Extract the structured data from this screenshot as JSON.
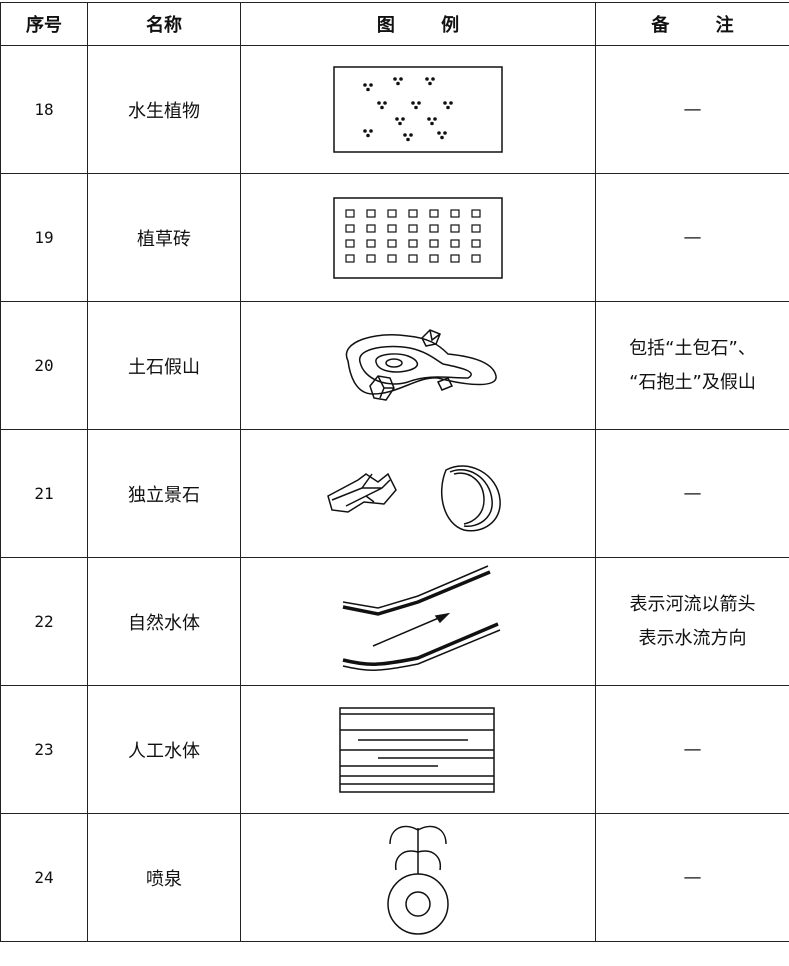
{
  "header": [
    "序号",
    "名称",
    "图 例",
    "备 注"
  ],
  "rows": [
    {
      "no": 18,
      "name": "水生植物",
      "remark": [
        "—"
      ]
    },
    {
      "no": 19,
      "name": "植草砖",
      "remark": [
        "—"
      ]
    },
    {
      "no": 20,
      "name": "土石假山",
      "remark": [
        "包括“土包石”、",
        "“石抱土”及假山"
      ]
    },
    {
      "no": 21,
      "name": "独立景石",
      "remark": [
        "—"
      ]
    },
    {
      "no": 22,
      "name": "自然水体",
      "remark": [
        "表示河流以箭头",
        "表示水流方向"
      ]
    },
    {
      "no": 23,
      "name": "人工水体",
      "remark": [
        "—"
      ]
    },
    {
      "no": 24,
      "name": "喷泉",
      "remark": [
        "—"
      ]
    }
  ]
}
